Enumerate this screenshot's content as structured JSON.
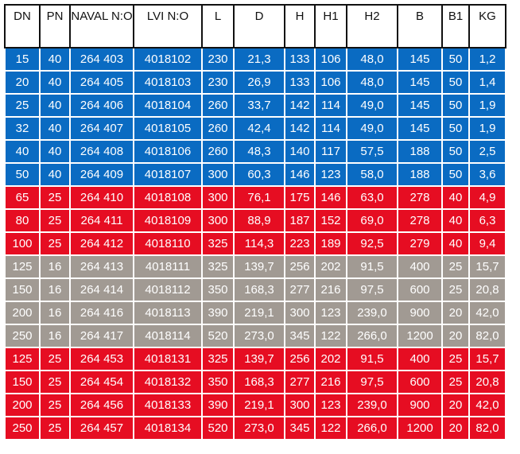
{
  "colors": {
    "blue": "#0a6bc2",
    "red": "#e60d22",
    "grey": "#a19a93",
    "header_bg": "#ffffff",
    "header_text": "#111111"
  },
  "headers": [
    "DN",
    "PN",
    "NAVAL N:O",
    "LVI N:O",
    "L",
    "D",
    "H",
    "H1",
    "H2",
    "B",
    "B1",
    "KG"
  ],
  "rows": [
    {
      "color": "blue",
      "cells": [
        "15",
        "40",
        "264 403",
        "4018102",
        "230",
        "21,3",
        "133",
        "106",
        "48,0",
        "145",
        "50",
        "1,2"
      ]
    },
    {
      "color": "blue",
      "cells": [
        "20",
        "40",
        "264 405",
        "4018103",
        "230",
        "26,9",
        "133",
        "106",
        "48,0",
        "145",
        "50",
        "1,4"
      ]
    },
    {
      "color": "blue",
      "cells": [
        "25",
        "40",
        "264 406",
        "4018104",
        "260",
        "33,7",
        "142",
        "114",
        "49,0",
        "145",
        "50",
        "1,9"
      ]
    },
    {
      "color": "blue",
      "cells": [
        "32",
        "40",
        "264 407",
        "4018105",
        "260",
        "42,4",
        "142",
        "114",
        "49,0",
        "145",
        "50",
        "1,9"
      ]
    },
    {
      "color": "blue",
      "cells": [
        "40",
        "40",
        "264 408",
        "4018106",
        "260",
        "48,3",
        "140",
        "117",
        "57,5",
        "188",
        "50",
        "2,5"
      ]
    },
    {
      "color": "blue",
      "cells": [
        "50",
        "40",
        "264 409",
        "4018107",
        "300",
        "60,3",
        "146",
        "123",
        "58,0",
        "188",
        "50",
        "3,6"
      ]
    },
    {
      "color": "red",
      "cells": [
        "65",
        "25",
        "264 410",
        "4018108",
        "300",
        "76,1",
        "175",
        "146",
        "63,0",
        "278",
        "40",
        "4,9"
      ]
    },
    {
      "color": "red",
      "cells": [
        "80",
        "25",
        "264 411",
        "4018109",
        "300",
        "88,9",
        "187",
        "152",
        "69,0",
        "278",
        "40",
        "6,3"
      ]
    },
    {
      "color": "red",
      "cells": [
        "100",
        "25",
        "264 412",
        "4018110",
        "325",
        "114,3",
        "223",
        "189",
        "92,5",
        "279",
        "40",
        "9,4"
      ]
    },
    {
      "color": "grey",
      "cells": [
        "125",
        "16",
        "264 413",
        "4018111",
        "325",
        "139,7",
        "256",
        "202",
        "91,5",
        "400",
        "25",
        "15,7"
      ]
    },
    {
      "color": "grey",
      "cells": [
        "150",
        "16",
        "264 414",
        "4018112",
        "350",
        "168,3",
        "277",
        "216",
        "97,5",
        "600",
        "25",
        "20,8"
      ]
    },
    {
      "color": "grey",
      "cells": [
        "200",
        "16",
        "264 416",
        "4018113",
        "390",
        "219,1",
        "300",
        "123",
        "239,0",
        "900",
        "20",
        "42,0"
      ]
    },
    {
      "color": "grey",
      "cells": [
        "250",
        "16",
        "264 417",
        "4018114",
        "520",
        "273,0",
        "345",
        "122",
        "266,0",
        "1200",
        "20",
        "82,0"
      ]
    },
    {
      "color": "red",
      "cells": [
        "125",
        "25",
        "264 453",
        "4018131",
        "325",
        "139,7",
        "256",
        "202",
        "91,5",
        "400",
        "25",
        "15,7"
      ]
    },
    {
      "color": "red",
      "cells": [
        "150",
        "25",
        "264 454",
        "4018132",
        "350",
        "168,3",
        "277",
        "216",
        "97,5",
        "600",
        "25",
        "20,8"
      ]
    },
    {
      "color": "red",
      "cells": [
        "200",
        "25",
        "264 456",
        "4018133",
        "390",
        "219,1",
        "300",
        "123",
        "239,0",
        "900",
        "20",
        "42,0"
      ]
    },
    {
      "color": "red",
      "cells": [
        "250",
        "25",
        "264 457",
        "4018134",
        "520",
        "273,0",
        "345",
        "122",
        "266,0",
        "1200",
        "20",
        "82,0"
      ]
    }
  ]
}
